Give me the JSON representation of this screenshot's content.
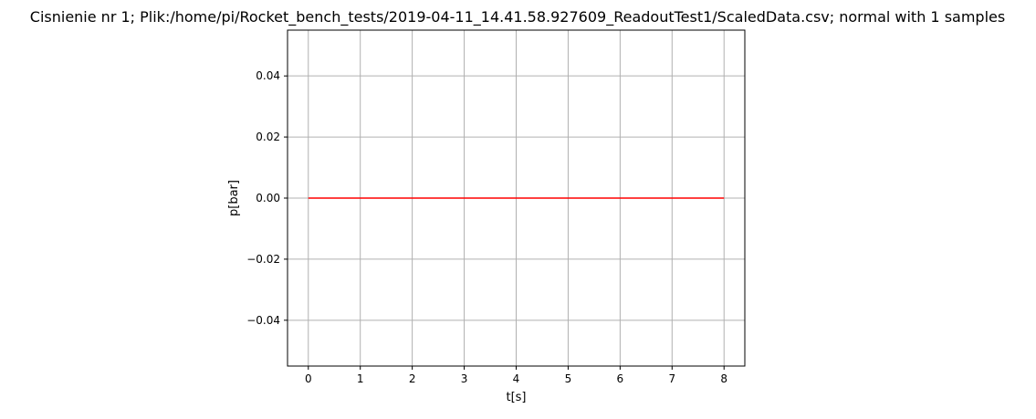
{
  "chart_data": {
    "type": "line",
    "title": "Cisnienie nr 1; Plik:/home/pi/Rocket_bench_tests/2019-04-11_14.41.58.927609_ReadoutTest1/ScaledData.csv; normal with 1 samples",
    "xlabel": "t[s]",
    "ylabel": "p[bar]",
    "xlim": [
      -0.4,
      8.4
    ],
    "ylim": [
      -0.055,
      0.055
    ],
    "xticks": [
      0,
      1,
      2,
      3,
      4,
      5,
      6,
      7,
      8
    ],
    "xtick_labels": [
      "0",
      "1",
      "2",
      "3",
      "4",
      "5",
      "6",
      "7",
      "8"
    ],
    "yticks": [
      -0.04,
      -0.02,
      0.0,
      0.02,
      0.04
    ],
    "ytick_labels": [
      "−0.04",
      "−0.02",
      "0.00",
      "0.02",
      "0.04"
    ],
    "grid": true,
    "series": [
      {
        "color": "#ff0000",
        "x": [
          0,
          8
        ],
        "y": [
          0.0,
          0.0
        ]
      }
    ]
  }
}
